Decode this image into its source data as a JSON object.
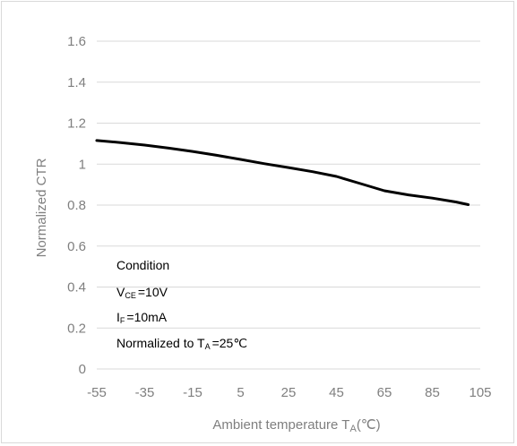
{
  "chart_data": {
    "type": "line",
    "title": "",
    "xlabel": "Ambient temperature T",
    "xlabel_sub": "A",
    "xlabel_unit": "(℃)",
    "ylabel": "Normalized CTR",
    "xlim": [
      -55,
      105
    ],
    "ylim": [
      0,
      1.6
    ],
    "x_ticks": [
      "-55",
      "-35",
      "-15",
      "5",
      "25",
      "45",
      "65",
      "85",
      "105"
    ],
    "y_ticks": [
      "0",
      "0.2",
      "0.4",
      "0.6",
      "0.8",
      "1",
      "1.2",
      "1.4",
      "1.6"
    ],
    "grid": "horizontal",
    "legend": "none",
    "series": [
      {
        "color": "#000000",
        "x": [
          -55,
          -45,
          -35,
          -25,
          -15,
          -5,
          5,
          15,
          25,
          35,
          45,
          55,
          65,
          75,
          85,
          95,
          100
        ],
        "y": [
          1.115,
          1.105,
          1.093,
          1.078,
          1.062,
          1.043,
          1.023,
          1.002,
          0.983,
          0.963,
          0.94,
          0.905,
          0.87,
          0.85,
          0.834,
          0.815,
          0.802
        ]
      }
    ],
    "annotations": {
      "condition_title": "Condition",
      "vce_main": "V",
      "vce_sub": "CE",
      "vce_value": "=10V",
      "if_main": "I",
      "if_sub": "F",
      "if_value": "=10mA",
      "norm_text": "Normalized to T",
      "norm_sub": "A",
      "norm_value": "=25℃"
    }
  }
}
